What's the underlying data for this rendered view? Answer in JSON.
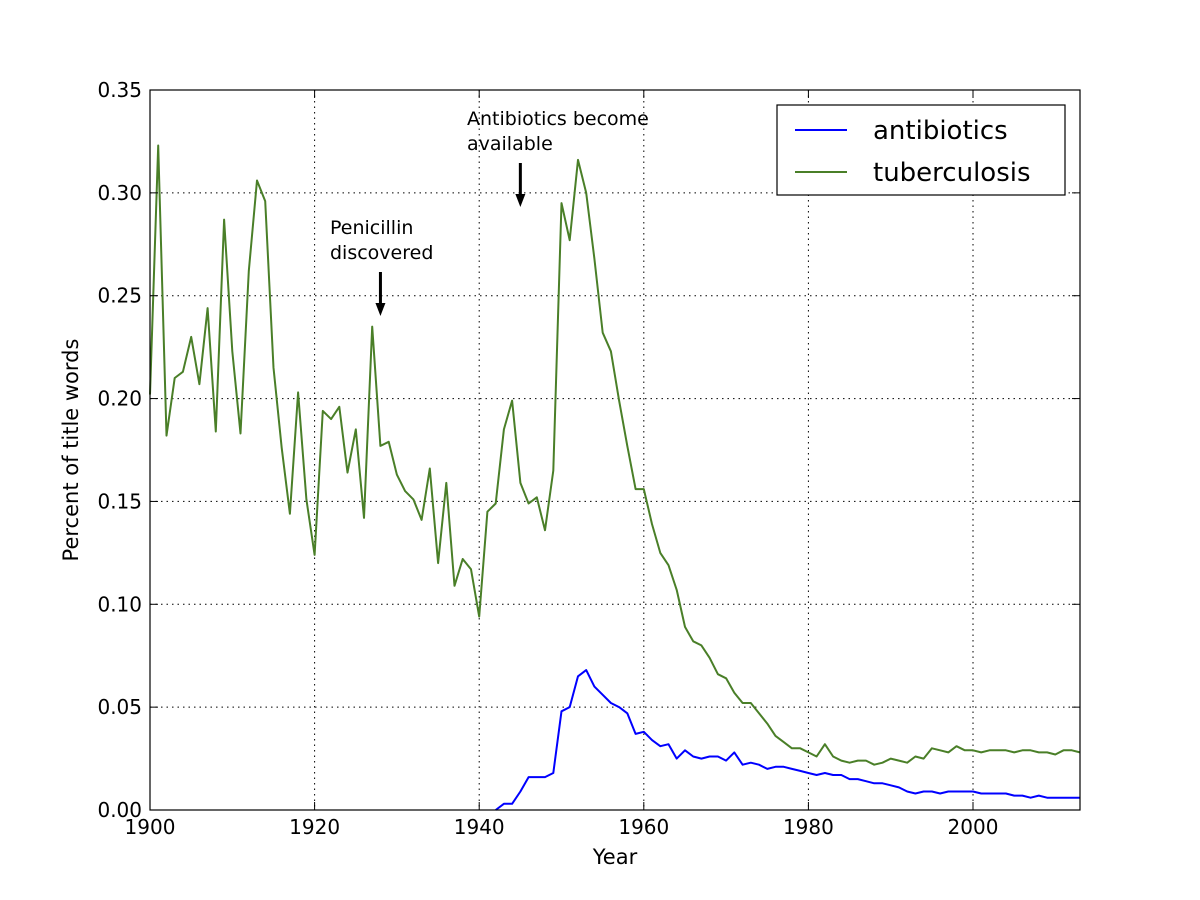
{
  "chart_data": {
    "type": "line",
    "title": "",
    "xlabel": "Year",
    "ylabel": "Percent of title words",
    "xlim": [
      1900,
      2013
    ],
    "ylim": [
      0,
      0.35
    ],
    "xticks": [
      1900,
      1920,
      1940,
      1960,
      1980,
      2000
    ],
    "xtick_labels": [
      "1900",
      "1920",
      "1940",
      "1960",
      "1980",
      "2000"
    ],
    "yticks": [
      0,
      0.05,
      0.1,
      0.15,
      0.2,
      0.25,
      0.3,
      0.35
    ],
    "ytick_labels": [
      "0.00",
      "0.05",
      "0.10",
      "0.15",
      "0.20",
      "0.25",
      "0.30",
      "0.35"
    ],
    "grid": true,
    "legend_position": "top-right",
    "series": [
      {
        "name": "antibiotics",
        "color": "#0000ff",
        "x": [
          1942,
          1943,
          1944,
          1945,
          1946,
          1947,
          1948,
          1949,
          1950,
          1951,
          1952,
          1953,
          1954,
          1955,
          1956,
          1957,
          1958,
          1959,
          1960,
          1961,
          1962,
          1963,
          1964,
          1965,
          1966,
          1967,
          1968,
          1969,
          1970,
          1971,
          1972,
          1973,
          1974,
          1975,
          1976,
          1977,
          1978,
          1979,
          1980,
          1981,
          1982,
          1983,
          1984,
          1985,
          1986,
          1987,
          1988,
          1989,
          1990,
          1991,
          1992,
          1993,
          1994,
          1995,
          1996,
          1997,
          1998,
          1999,
          2000,
          2001,
          2002,
          2003,
          2004,
          2005,
          2006,
          2007,
          2008,
          2009,
          2010,
          2011,
          2012,
          2013
        ],
        "values": [
          0.0,
          0.003,
          0.003,
          0.009,
          0.016,
          0.016,
          0.016,
          0.018,
          0.048,
          0.05,
          0.065,
          0.068,
          0.06,
          0.056,
          0.052,
          0.05,
          0.047,
          0.037,
          0.038,
          0.034,
          0.031,
          0.032,
          0.025,
          0.029,
          0.026,
          0.025,
          0.026,
          0.026,
          0.024,
          0.028,
          0.022,
          0.023,
          0.022,
          0.02,
          0.021,
          0.021,
          0.02,
          0.019,
          0.018,
          0.017,
          0.018,
          0.017,
          0.017,
          0.015,
          0.015,
          0.014,
          0.013,
          0.013,
          0.012,
          0.011,
          0.009,
          0.008,
          0.009,
          0.009,
          0.008,
          0.009,
          0.009,
          0.009,
          0.009,
          0.008,
          0.008,
          0.008,
          0.008,
          0.007,
          0.007,
          0.006,
          0.007,
          0.006,
          0.006,
          0.006,
          0.006,
          0.006
        ]
      },
      {
        "name": "tuberculosis",
        "color": "#4a7f28",
        "x": [
          1900,
          1901,
          1902,
          1903,
          1904,
          1905,
          1906,
          1907,
          1908,
          1909,
          1910,
          1911,
          1912,
          1913,
          1914,
          1915,
          1916,
          1917,
          1918,
          1919,
          1920,
          1921,
          1922,
          1923,
          1924,
          1925,
          1926,
          1927,
          1928,
          1929,
          1930,
          1931,
          1932,
          1933,
          1934,
          1935,
          1936,
          1937,
          1938,
          1939,
          1940,
          1941,
          1942,
          1943,
          1944,
          1945,
          1946,
          1947,
          1948,
          1949,
          1950,
          1951,
          1952,
          1953,
          1954,
          1955,
          1956,
          1957,
          1958,
          1959,
          1960,
          1961,
          1962,
          1963,
          1964,
          1965,
          1966,
          1967,
          1968,
          1969,
          1970,
          1971,
          1972,
          1973,
          1974,
          1975,
          1976,
          1977,
          1978,
          1979,
          1980,
          1981,
          1982,
          1983,
          1984,
          1985,
          1986,
          1987,
          1988,
          1989,
          1990,
          1991,
          1992,
          1993,
          1994,
          1995,
          1996,
          1997,
          1998,
          1999,
          2000,
          2001,
          2002,
          2003,
          2004,
          2005,
          2006,
          2007,
          2008,
          2009,
          2010,
          2011,
          2012,
          2013
        ],
        "values": [
          0.202,
          0.323,
          0.182,
          0.21,
          0.213,
          0.23,
          0.207,
          0.244,
          0.184,
          0.287,
          0.223,
          0.183,
          0.262,
          0.306,
          0.296,
          0.215,
          0.176,
          0.144,
          0.203,
          0.151,
          0.124,
          0.194,
          0.19,
          0.196,
          0.164,
          0.185,
          0.142,
          0.235,
          0.177,
          0.179,
          0.163,
          0.155,
          0.151,
          0.141,
          0.166,
          0.12,
          0.159,
          0.109,
          0.122,
          0.117,
          0.094,
          0.145,
          0.149,
          0.185,
          0.199,
          0.159,
          0.149,
          0.152,
          0.136,
          0.165,
          0.295,
          0.277,
          0.316,
          0.3,
          0.268,
          0.232,
          0.223,
          0.199,
          0.177,
          0.156,
          0.156,
          0.139,
          0.125,
          0.119,
          0.107,
          0.089,
          0.082,
          0.08,
          0.074,
          0.066,
          0.064,
          0.057,
          0.052,
          0.052,
          0.047,
          0.042,
          0.036,
          0.033,
          0.03,
          0.03,
          0.028,
          0.026,
          0.032,
          0.026,
          0.024,
          0.023,
          0.024,
          0.024,
          0.022,
          0.023,
          0.025,
          0.024,
          0.023,
          0.026,
          0.025,
          0.03,
          0.029,
          0.028,
          0.031,
          0.029,
          0.029,
          0.028,
          0.029,
          0.029,
          0.029,
          0.028,
          0.029,
          0.029,
          0.028,
          0.028,
          0.027,
          0.029,
          0.029,
          0.028
        ]
      }
    ],
    "annotations": [
      {
        "lines": [
          "Penicillin",
          "discovered"
        ],
        "x": 1928
      },
      {
        "lines": [
          "Antibiotics become",
          "available"
        ],
        "x": 1945
      }
    ]
  }
}
